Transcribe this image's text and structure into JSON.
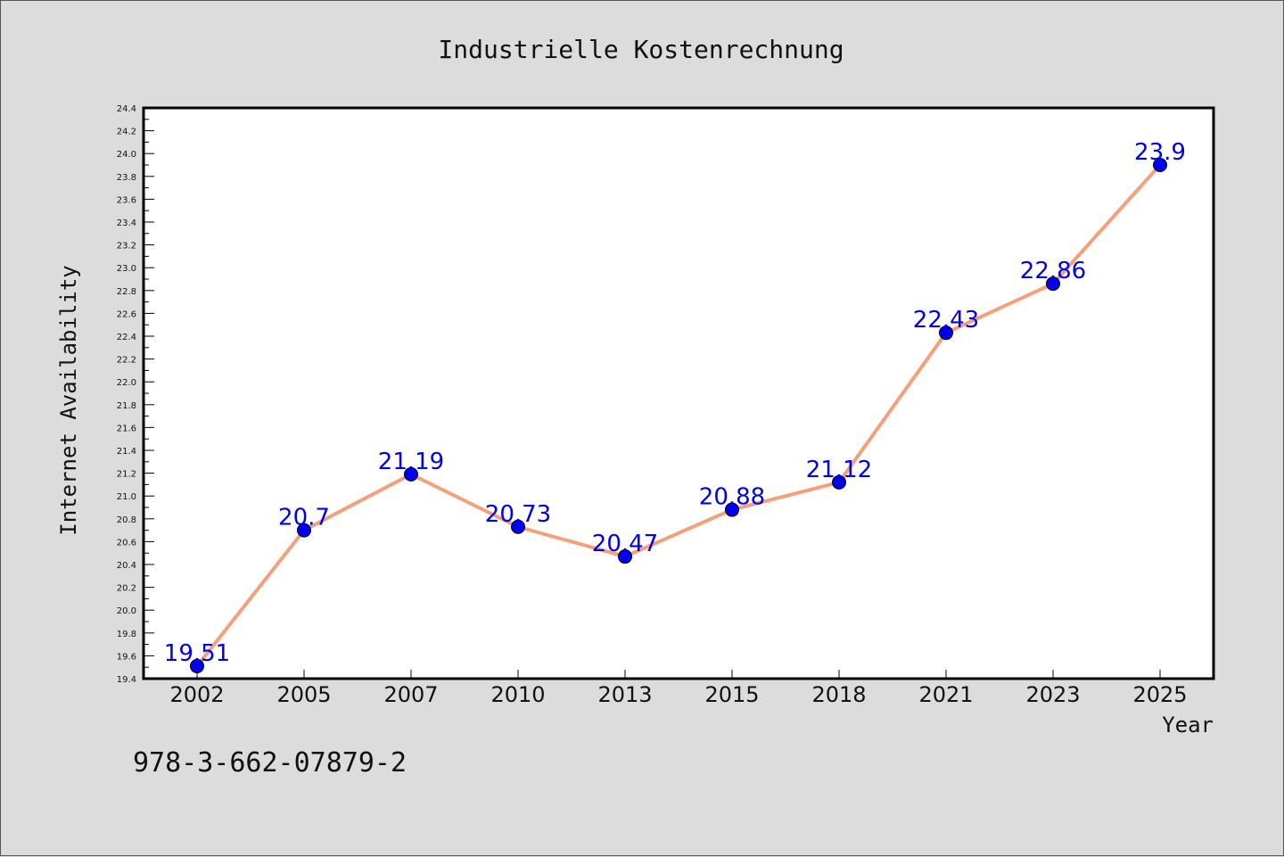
{
  "chart_data": {
    "type": "line",
    "title": "Industrielle Kostenrechnung",
    "xlabel": "Year",
    "ylabel": "Internet Availability",
    "categories": [
      "2002",
      "2005",
      "2007",
      "2010",
      "2013",
      "2015",
      "2018",
      "2021",
      "2023",
      "2025"
    ],
    "series": [
      {
        "values": [
          19.51,
          20.7,
          21.19,
          20.73,
          20.47,
          20.88,
          21.12,
          22.43,
          22.86,
          23.9
        ],
        "labels": [
          "19.51",
          "20.7",
          "21.19",
          "20.73",
          "20.47",
          "20.88",
          "21.12",
          "22.43",
          "22.86",
          "23.9"
        ]
      }
    ],
    "ylim": [
      19.4,
      24.4
    ],
    "yticks": [
      "19.4",
      "19.6",
      "19.8",
      "20.0",
      "20.2",
      "20.4",
      "20.6",
      "20.8",
      "21.0",
      "21.2",
      "21.4",
      "21.6",
      "21.8",
      "22.0",
      "22.2",
      "22.4",
      "22.6",
      "22.8",
      "23.0",
      "23.2",
      "23.4",
      "23.6",
      "23.8",
      "24.0",
      "24.2",
      "24.4"
    ],
    "grid": false,
    "line_color": "#f4a07a",
    "marker_color": "#0000ee",
    "label_color": "#0000ee"
  },
  "footer_text": "978-3-662-07879-2"
}
